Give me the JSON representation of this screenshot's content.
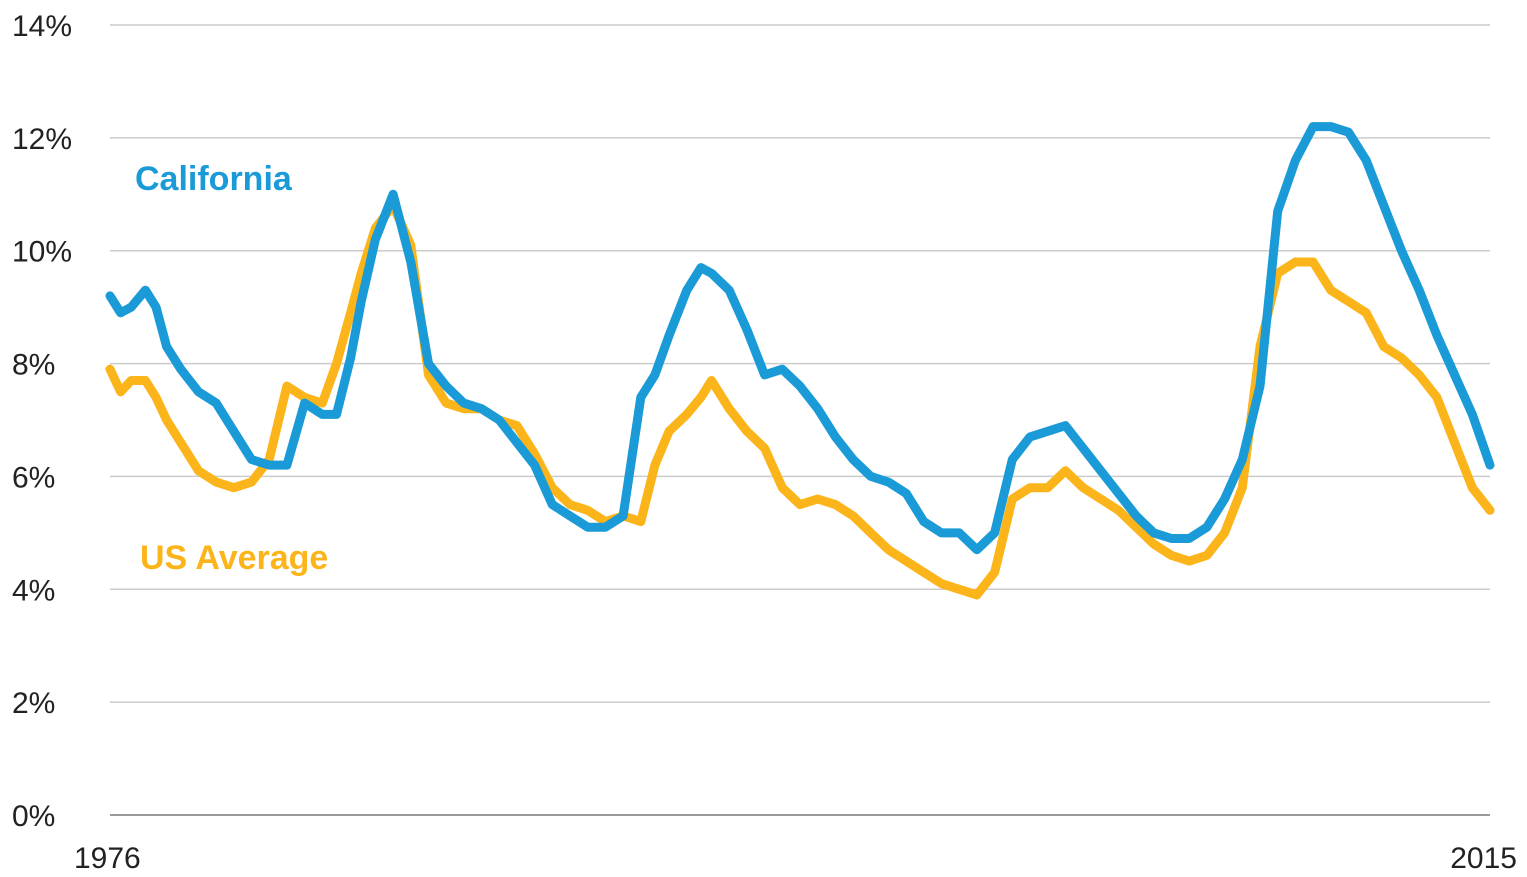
{
  "chart_data": {
    "type": "line",
    "title": "",
    "xlabel": "",
    "ylabel": "",
    "x_range": [
      1976,
      2015
    ],
    "x_tick_labels": [
      "1976",
      "2015"
    ],
    "ylim": [
      0,
      14
    ],
    "y_ticks": [
      0,
      2,
      4,
      6,
      8,
      10,
      12,
      14
    ],
    "y_tick_labels": [
      "0%",
      "2%",
      "4%",
      "6%",
      "8%",
      "10%",
      "12%",
      "14%"
    ],
    "grid": "horizontal",
    "series": [
      {
        "name": "California",
        "color": "#1a9ad6",
        "x": [
          1976.0,
          1976.3,
          1976.6,
          1977.0,
          1977.3,
          1977.6,
          1978.0,
          1978.5,
          1979.0,
          1979.5,
          1980.0,
          1980.5,
          1981.0,
          1981.5,
          1982.0,
          1982.4,
          1982.8,
          1983.1,
          1983.5,
          1984.0,
          1984.5,
          1985.0,
          1985.5,
          1986.0,
          1986.5,
          1987.0,
          1987.5,
          1988.0,
          1988.5,
          1989.0,
          1989.5,
          1990.0,
          1990.5,
          1991.0,
          1991.4,
          1991.8,
          1992.3,
          1992.7,
          1993.0,
          1993.5,
          1994.0,
          1994.5,
          1995.0,
          1995.5,
          1996.0,
          1996.5,
          1997.0,
          1997.5,
          1998.0,
          1998.5,
          1999.0,
          1999.5,
          2000.0,
          2000.5,
          2001.0,
          2001.5,
          2002.0,
          2002.5,
          2003.0,
          2003.5,
          2004.0,
          2004.5,
          2005.0,
          2005.5,
          2006.0,
          2006.5,
          2007.0,
          2007.5,
          2008.0,
          2008.5,
          2009.0,
          2009.5,
          2010.0,
          2010.5,
          2011.0,
          2011.5,
          2012.0,
          2012.5,
          2013.0,
          2013.5,
          2014.0,
          2014.5,
          2015.0
        ],
        "values": [
          9.2,
          8.9,
          9.0,
          9.3,
          9.0,
          8.3,
          7.9,
          7.5,
          7.3,
          6.8,
          6.3,
          6.2,
          6.2,
          7.3,
          7.1,
          7.1,
          8.1,
          9.1,
          10.2,
          11.0,
          9.8,
          8.0,
          7.6,
          7.3,
          7.2,
          7.0,
          6.6,
          6.2,
          5.5,
          5.3,
          5.1,
          5.1,
          5.3,
          7.4,
          7.8,
          8.5,
          9.3,
          9.7,
          9.6,
          9.3,
          8.6,
          7.8,
          7.9,
          7.6,
          7.2,
          6.7,
          6.3,
          6.0,
          5.9,
          5.7,
          5.2,
          5.0,
          5.0,
          4.7,
          5.0,
          6.3,
          6.7,
          6.8,
          6.9,
          6.5,
          6.1,
          5.7,
          5.3,
          5.0,
          4.9,
          4.9,
          5.1,
          5.6,
          6.3,
          7.6,
          10.7,
          11.6,
          12.2,
          12.2,
          12.1,
          11.6,
          10.8,
          10.0,
          9.3,
          8.5,
          7.8,
          7.1,
          6.2
        ]
      },
      {
        "name": "US Average",
        "color": "#fbb51a",
        "x": [
          1976.0,
          1976.3,
          1976.6,
          1977.0,
          1977.3,
          1977.6,
          1978.0,
          1978.5,
          1979.0,
          1979.5,
          1980.0,
          1980.5,
          1981.0,
          1981.5,
          1982.0,
          1982.4,
          1982.8,
          1983.1,
          1983.5,
          1984.0,
          1984.5,
          1985.0,
          1985.5,
          1986.0,
          1986.5,
          1987.0,
          1987.5,
          1988.0,
          1988.5,
          1989.0,
          1989.5,
          1990.0,
          1990.5,
          1991.0,
          1991.4,
          1991.8,
          1992.3,
          1992.7,
          1993.0,
          1993.5,
          1994.0,
          1994.5,
          1995.0,
          1995.5,
          1996.0,
          1996.5,
          1997.0,
          1997.5,
          1998.0,
          1998.5,
          1999.0,
          1999.5,
          2000.0,
          2000.5,
          2001.0,
          2001.5,
          2002.0,
          2002.5,
          2003.0,
          2003.5,
          2004.0,
          2004.5,
          2005.0,
          2005.5,
          2006.0,
          2006.5,
          2007.0,
          2007.5,
          2008.0,
          2008.5,
          2009.0,
          2009.5,
          2010.0,
          2010.5,
          2011.0,
          2011.5,
          2012.0,
          2012.5,
          2013.0,
          2013.5,
          2014.0,
          2014.5,
          2015.0
        ],
        "values": [
          7.9,
          7.5,
          7.7,
          7.7,
          7.4,
          7.0,
          6.6,
          6.1,
          5.9,
          5.8,
          5.9,
          6.3,
          7.6,
          7.4,
          7.3,
          8.0,
          8.9,
          9.6,
          10.4,
          10.8,
          10.1,
          7.8,
          7.3,
          7.2,
          7.2,
          7.0,
          6.9,
          6.4,
          5.8,
          5.5,
          5.4,
          5.2,
          5.3,
          5.2,
          6.2,
          6.8,
          7.1,
          7.4,
          7.7,
          7.2,
          6.8,
          6.5,
          5.8,
          5.5,
          5.6,
          5.5,
          5.3,
          5.0,
          4.7,
          4.5,
          4.3,
          4.1,
          4.0,
          3.9,
          4.3,
          5.6,
          5.8,
          5.8,
          6.1,
          5.8,
          5.6,
          5.4,
          5.1,
          4.8,
          4.6,
          4.5,
          4.6,
          5.0,
          5.8,
          8.3,
          9.6,
          9.8,
          9.8,
          9.3,
          9.1,
          8.9,
          8.3,
          8.1,
          7.8,
          7.4,
          6.6,
          5.8,
          5.4
        ]
      }
    ]
  }
}
